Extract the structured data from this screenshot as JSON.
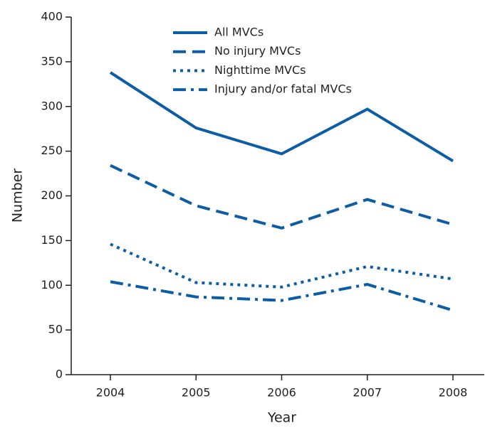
{
  "chart_data": {
    "type": "line",
    "xlabel": "Year",
    "ylabel": "Number",
    "categories": [
      "2004",
      "2005",
      "2006",
      "2007",
      "2008"
    ],
    "series": [
      {
        "name": "All MVCs",
        "color": "#0c5da5",
        "style": "solid",
        "values": [
          338,
          276,
          247,
          297,
          239
        ]
      },
      {
        "name": "No injury MVCs",
        "color": "#0c5da5",
        "style": "dashed",
        "values": [
          234,
          189,
          164,
          196,
          168
        ]
      },
      {
        "name": "Nighttime MVCs",
        "color": "#0c5da5",
        "style": "dotted",
        "values": [
          146,
          103,
          98,
          121,
          107
        ]
      },
      {
        "name": "Injury and/or fatal MVCs",
        "color": "#0c5da5",
        "style": "dashdot",
        "values": [
          104,
          87,
          83,
          101,
          72
        ]
      }
    ],
    "ylim": [
      0,
      400
    ],
    "yticks": [
      0,
      50,
      100,
      150,
      200,
      250,
      300,
      350,
      400
    ],
    "legend": "top"
  }
}
